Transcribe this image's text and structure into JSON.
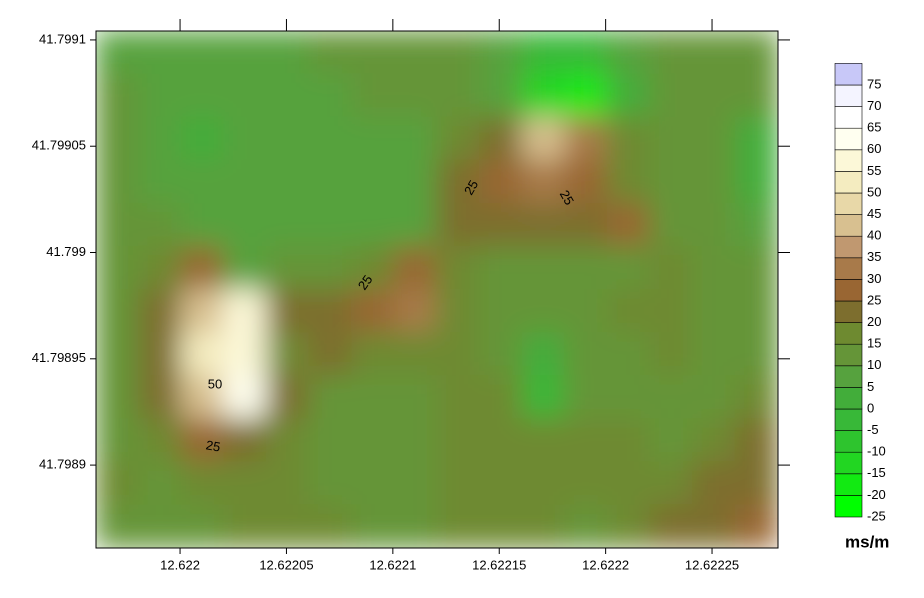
{
  "chart_data": {
    "type": "contour",
    "xlim": [
      12.6219605,
      12.622281
    ],
    "ylim": [
      41.798861,
      41.7991042
    ],
    "xticks": [
      12.622,
      12.62205,
      12.6221,
      12.62215,
      12.6222,
      12.62225
    ],
    "yticks": [
      41.7989,
      41.79895,
      41.799,
      41.79905,
      41.7991
    ],
    "z": [
      [
        8,
        7,
        7,
        7,
        8,
        12,
        14,
        14,
        13,
        6,
        -5,
        -5,
        6,
        14,
        14,
        14
      ],
      [
        10,
        7,
        6,
        6,
        6,
        8,
        12,
        12,
        10,
        5,
        -15,
        -20,
        3,
        12,
        12,
        10
      ],
      [
        12,
        6,
        2,
        6,
        6,
        6,
        7,
        8,
        15,
        22,
        40,
        30,
        18,
        13,
        10,
        2
      ],
      [
        14,
        7,
        6,
        5,
        6,
        6,
        7,
        8,
        22,
        28,
        30,
        28,
        18,
        14,
        10,
        0
      ],
      [
        14,
        10,
        8,
        6,
        8,
        8,
        8,
        5,
        22,
        23,
        22,
        22,
        26,
        14,
        12,
        8
      ],
      [
        13,
        16,
        25,
        5,
        10,
        12,
        18,
        28,
        16,
        12,
        10,
        14,
        12,
        15,
        12,
        13
      ],
      [
        13,
        20,
        40,
        55,
        24,
        20,
        25,
        32,
        16,
        12,
        10,
        13,
        15,
        18,
        14,
        14
      ],
      [
        12,
        22,
        52,
        55,
        15,
        20,
        17,
        17,
        16,
        14,
        0,
        14,
        13,
        15,
        14,
        14
      ],
      [
        12,
        22,
        40,
        60,
        22,
        13,
        14,
        14,
        16,
        15,
        -5,
        14,
        14,
        10,
        14,
        16
      ],
      [
        13,
        15,
        25,
        24,
        16,
        14,
        10,
        12,
        18,
        18,
        18,
        17,
        16,
        14,
        16,
        22
      ],
      [
        15,
        14,
        16,
        15,
        15,
        14,
        14,
        12,
        15,
        16,
        16,
        15,
        15,
        18,
        22,
        24
      ],
      [
        13,
        13,
        14,
        15,
        15,
        15,
        14,
        14,
        15,
        16,
        16,
        14,
        16,
        22,
        24,
        25
      ]
    ],
    "colorbar_ticks": [
      -25,
      -20,
      -15,
      -10,
      -5,
      0,
      5,
      10,
      15,
      20,
      25,
      30,
      35,
      40,
      45,
      50,
      55,
      60,
      65,
      70,
      75
    ],
    "colors": [
      "#00ff00",
      "#12ea12",
      "#22d622",
      "#2ec42e",
      "#38b838",
      "#42ad3a",
      "#56a23e",
      "#659538",
      "#6e8a30",
      "#7d6e2e",
      "#996633",
      "#a87a4a",
      "#c09870",
      "#d8c090",
      "#e8d8a8",
      "#f4ecc0",
      "#fcf8d8",
      "#fffff0",
      "#ffffff",
      "#f4f4ff",
      "#c8c8f8"
    ],
    "colorbar_label": "ms/m",
    "contour_labels": [
      25,
      50,
      25,
      25,
      25
    ]
  }
}
